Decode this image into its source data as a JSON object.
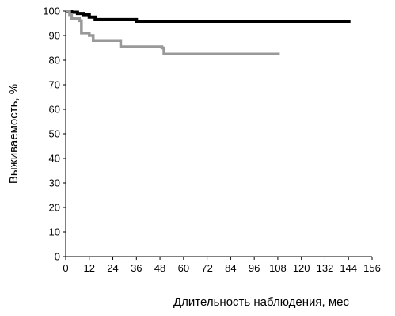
{
  "chart_data": {
    "type": "line",
    "title": "",
    "xlabel": "Длительность наблюдения, мес",
    "ylabel": "Выживаемость, %",
    "xlim": [
      0,
      156
    ],
    "ylim": [
      0,
      100
    ],
    "x_ticks": [
      0,
      12,
      24,
      36,
      48,
      60,
      72,
      84,
      96,
      108,
      120,
      132,
      144,
      156
    ],
    "x_tick_labels": [
      "0",
      "12",
      "24",
      "36",
      "48",
      "60",
      "72",
      "84",
      "96",
      "108",
      "120",
      "132",
      "144",
      "156"
    ],
    "y_ticks": [
      0,
      10,
      20,
      30,
      40,
      50,
      60,
      70,
      80,
      90,
      100
    ],
    "y_tick_labels": [
      "0",
      "10",
      "20",
      "30",
      "40",
      "50",
      "60",
      "70",
      "80",
      "90",
      "100"
    ],
    "grid": false,
    "legend": "none",
    "series": [
      {
        "color": "#000000",
        "step": true,
        "points": [
          [
            0,
            100
          ],
          [
            3,
            99.5
          ],
          [
            6,
            99
          ],
          [
            9,
            98.5
          ],
          [
            12,
            97.5
          ],
          [
            15,
            96.5
          ],
          [
            36,
            95.8
          ],
          [
            145,
            95.8
          ]
        ]
      },
      {
        "color": "#999999",
        "step": true,
        "points": [
          [
            0,
            100
          ],
          [
            2,
            98.5
          ],
          [
            3,
            97
          ],
          [
            7,
            96
          ],
          [
            8,
            91
          ],
          [
            12,
            90
          ],
          [
            14,
            88
          ],
          [
            28,
            85.5
          ],
          [
            49,
            85
          ],
          [
            50,
            82.5
          ],
          [
            109,
            82.5
          ]
        ]
      }
    ]
  }
}
